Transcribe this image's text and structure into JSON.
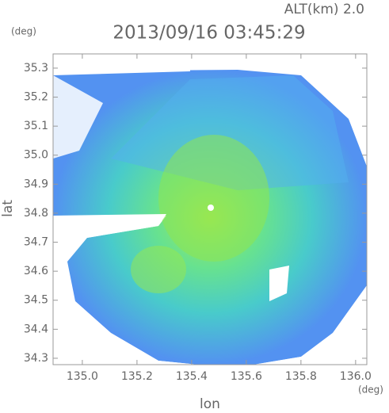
{
  "chart_data": {
    "type": "radar-map",
    "title": "2013/09/16 03:45:29",
    "altitude_label": "ALT(km)  2.0",
    "y_unit": "(deg)",
    "x_unit": "(deg)",
    "xlabel": "lon",
    "ylabel": "lat",
    "xlim": [
      134.893,
      136.041
    ],
    "ylim": [
      34.278,
      35.349
    ],
    "xticks": [
      {
        "value": 135.0,
        "label": "135.0"
      },
      135.2,
      135.4,
      135.6,
      135.8,
      {
        "value": 136.0,
        "label": "136.0"
      }
    ],
    "yticks": [
      34.3,
      34.4,
      34.5,
      34.6,
      34.7,
      34.8,
      34.9,
      {
        "value": 35.0,
        "label": "35.0"
      },
      35.1,
      35.2,
      35.3
    ]
  }
}
